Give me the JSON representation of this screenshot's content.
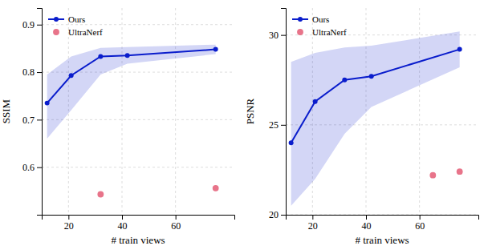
{
  "chart_data": [
    {
      "type": "line",
      "xlabel": "# train views",
      "ylabel": "SSIM",
      "x": [
        12,
        21,
        32,
        42,
        75
      ],
      "xlim": [
        10,
        82
      ],
      "xticks": [
        20,
        40,
        60
      ],
      "ylim": [
        0.5,
        0.935
      ],
      "yticks": [
        0.6,
        0.7,
        0.8,
        0.9
      ],
      "grid": true,
      "legend": "upper left",
      "series": [
        {
          "name": "Ours",
          "type": "line",
          "marker": "circle",
          "color": "#0a1dcc",
          "values": [
            0.735,
            0.793,
            0.833,
            0.835,
            0.848
          ],
          "upper": [
            0.795,
            0.833,
            0.851,
            0.853,
            0.858
          ],
          "lower": [
            0.66,
            0.72,
            0.795,
            0.818,
            0.838
          ]
        },
        {
          "name": "UltraNerf",
          "type": "scatter",
          "marker": "circle",
          "color": "#e8748a",
          "x": [
            32,
            75
          ],
          "values": [
            0.543,
            0.556
          ]
        }
      ]
    },
    {
      "type": "line",
      "xlabel": "# train views",
      "ylabel": "PSNR",
      "x": [
        12,
        21,
        32,
        42,
        75
      ],
      "xlim": [
        10,
        82
      ],
      "xticks": [
        20,
        40,
        60
      ],
      "ylim": [
        20.0,
        31.5
      ],
      "yticks": [
        20,
        25,
        30
      ],
      "grid": true,
      "legend": "upper left",
      "series": [
        {
          "name": "Ours",
          "type": "line",
          "marker": "circle",
          "color": "#0a1dcc",
          "values": [
            24.0,
            26.3,
            27.5,
            27.7,
            29.2
          ],
          "upper": [
            28.5,
            29.0,
            29.3,
            29.4,
            30.2
          ],
          "lower": [
            20.5,
            22.0,
            24.5,
            26.0,
            28.2
          ]
        },
        {
          "name": "UltraNerf",
          "type": "scatter",
          "marker": "circle",
          "color": "#e8748a",
          "x": [
            65,
            75
          ],
          "values": [
            22.2,
            22.4
          ]
        }
      ]
    }
  ]
}
